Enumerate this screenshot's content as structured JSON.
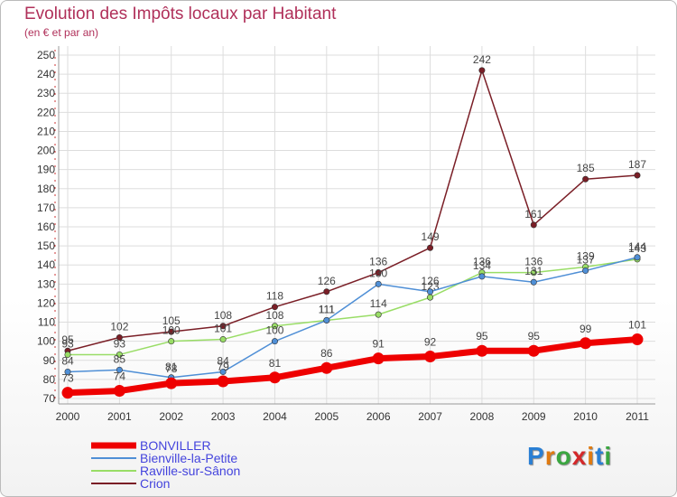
{
  "header": {
    "title": "Evolution des Impôts locaux par Habitant",
    "subtitle": "(en € et par an)"
  },
  "logo": {
    "text": "Proxiti",
    "letters": [
      "P",
      "r",
      "o",
      "x",
      "i",
      "t",
      "i"
    ],
    "colors": [
      "#2a7fd4",
      "#e07a10",
      "#3aa640",
      "#d4282a",
      "#e07a10",
      "#2a7fd4",
      "#3aa640"
    ]
  },
  "chart_data": {
    "type": "line",
    "title": "Evolution des Impôts locaux par Habitant",
    "subtitle": "(en € et par an)",
    "xlabel": "",
    "ylabel": "",
    "x": [
      "2000",
      "2001",
      "2002",
      "2003",
      "2004",
      "2005",
      "2006",
      "2007",
      "2008",
      "2009",
      "2010",
      "2011"
    ],
    "ylim": [
      70,
      250
    ],
    "yticks": [
      70,
      80,
      90,
      100,
      110,
      120,
      130,
      140,
      150,
      160,
      170,
      180,
      190,
      200,
      210,
      220,
      230,
      240,
      250
    ],
    "grid": true,
    "legend_position": "bottom-left",
    "series": [
      {
        "name": "BONVILLER",
        "color": "#ee0000",
        "values": [
          73,
          74,
          78,
          79,
          81,
          86,
          91,
          92,
          95,
          95,
          99,
          101
        ],
        "labels": [
          "73",
          "74",
          "78",
          "79",
          "81",
          "86",
          "91",
          "92",
          "95",
          "95",
          "99",
          "101"
        ]
      },
      {
        "name": "Bienville-la-Petite",
        "color": "#4f8fd6",
        "values": [
          84,
          85,
          81,
          84,
          100,
          111,
          130,
          126,
          134,
          131,
          137,
          144
        ],
        "labels": [
          "84",
          "85",
          "81",
          "84",
          "100",
          "111",
          "130",
          "126",
          "134",
          "131",
          "137",
          "144"
        ]
      },
      {
        "name": "Raville-sur-Sânon",
        "color": "#99dd66",
        "values": [
          93,
          93,
          100,
          101,
          108,
          111,
          114,
          123,
          136,
          136,
          139,
          143
        ],
        "labels": [
          "93",
          "93",
          "100",
          "101",
          "108",
          "111",
          "114",
          "123",
          "136",
          "136",
          "139",
          "143"
        ]
      },
      {
        "name": "Crion",
        "color": "#7a1e26",
        "values": [
          95,
          102,
          105,
          108,
          118,
          126,
          136,
          149,
          242,
          161,
          185,
          187
        ],
        "labels": [
          "95",
          "102",
          "105",
          "108",
          "118",
          "126",
          "136",
          "149",
          "242",
          "161",
          "185",
          "187"
        ]
      }
    ]
  }
}
